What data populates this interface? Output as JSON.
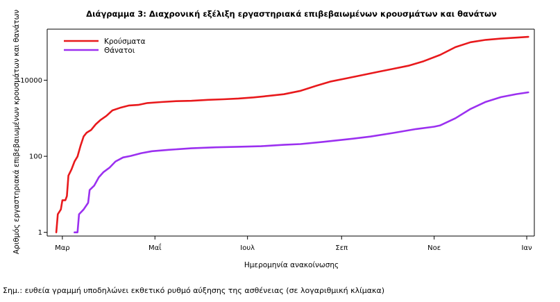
{
  "chart_data": {
    "type": "line",
    "title": "Διάγραμμα 3: Διαχρονική εξέλιξη εργαστηριακά επιβεβαιωμένων κρουσμάτων και θανάτων",
    "xlabel": "Ημερομηνία ανακοίνωσης",
    "ylabel": "Αριθμός εργαστηριακά επιβεβαιωμένων κρουσμάτων και θανάτων",
    "y_scale": "log",
    "ylim": [
      0.8,
      220000
    ],
    "xlim": [
      "2020-02-20",
      "2021-01-06"
    ],
    "x_ticks": [
      {
        "date": "2020-03-01",
        "label": "Μαρ"
      },
      {
        "date": "2020-05-01",
        "label": "Μαΐ"
      },
      {
        "date": "2020-07-01",
        "label": "Ιουλ"
      },
      {
        "date": "2020-09-01",
        "label": "Σεπ"
      },
      {
        "date": "2020-11-01",
        "label": "Νοε"
      },
      {
        "date": "2021-01-01",
        "label": "Ιαν"
      }
    ],
    "y_ticks": [
      {
        "value": 1,
        "label": "1"
      },
      {
        "value": 100,
        "label": "100"
      },
      {
        "value": 10000,
        "label": "10000"
      }
    ],
    "grid": false,
    "legend_position": "top-left",
    "series": [
      {
        "name": "Κρούσματα",
        "color": "#e8191c",
        "points": [
          [
            "2020-02-26",
            1
          ],
          [
            "2020-02-27",
            3
          ],
          [
            "2020-02-29",
            4
          ],
          [
            "2020-03-01",
            7
          ],
          [
            "2020-03-03",
            7
          ],
          [
            "2020-03-04",
            9
          ],
          [
            "2020-03-05",
            31
          ],
          [
            "2020-03-07",
            45
          ],
          [
            "2020-03-09",
            73
          ],
          [
            "2020-03-11",
            99
          ],
          [
            "2020-03-13",
            190
          ],
          [
            "2020-03-15",
            331
          ],
          [
            "2020-03-17",
            418
          ],
          [
            "2020-03-20",
            495
          ],
          [
            "2020-03-23",
            695
          ],
          [
            "2020-03-26",
            892
          ],
          [
            "2020-03-30",
            1156
          ],
          [
            "2020-04-03",
            1613
          ],
          [
            "2020-04-08",
            1884
          ],
          [
            "2020-04-14",
            2170
          ],
          [
            "2020-04-20",
            2245
          ],
          [
            "2020-04-26",
            2517
          ],
          [
            "2020-05-05",
            2663
          ],
          [
            "2020-05-15",
            2810
          ],
          [
            "2020-05-25",
            2878
          ],
          [
            "2020-06-05",
            3049
          ],
          [
            "2020-06-15",
            3148
          ],
          [
            "2020-06-25",
            3310
          ],
          [
            "2020-07-05",
            3530
          ],
          [
            "2020-07-15",
            3880
          ],
          [
            "2020-07-25",
            4280
          ],
          [
            "2020-08-05",
            5270
          ],
          [
            "2020-08-15",
            7080
          ],
          [
            "2020-08-25",
            9280
          ],
          [
            "2020-09-05",
            11380
          ],
          [
            "2020-09-15",
            13730
          ],
          [
            "2020-09-25",
            16590
          ],
          [
            "2020-10-05",
            20000
          ],
          [
            "2020-10-15",
            24000
          ],
          [
            "2020-10-25",
            31500
          ],
          [
            "2020-11-05",
            46500
          ],
          [
            "2020-11-15",
            74000
          ],
          [
            "2020-11-25",
            100000
          ],
          [
            "2020-12-05",
            115000
          ],
          [
            "2020-12-15",
            124000
          ],
          [
            "2020-12-25",
            132000
          ],
          [
            "2021-01-02",
            138000
          ]
        ]
      },
      {
        "name": "Θάνατοι",
        "color": "#9b30f0",
        "points": [
          [
            "2020-03-09",
            1
          ],
          [
            "2020-03-11",
            1
          ],
          [
            "2020-03-12",
            3
          ],
          [
            "2020-03-15",
            4
          ],
          [
            "2020-03-18",
            6
          ],
          [
            "2020-03-19",
            13
          ],
          [
            "2020-03-22",
            17
          ],
          [
            "2020-03-25",
            28
          ],
          [
            "2020-03-28",
            38
          ],
          [
            "2020-04-01",
            50
          ],
          [
            "2020-04-05",
            73
          ],
          [
            "2020-04-10",
            93
          ],
          [
            "2020-04-15",
            102
          ],
          [
            "2020-04-22",
            121
          ],
          [
            "2020-04-29",
            136
          ],
          [
            "2020-05-10",
            148
          ],
          [
            "2020-05-25",
            162
          ],
          [
            "2020-06-10",
            172
          ],
          [
            "2020-06-25",
            178
          ],
          [
            "2020-07-10",
            184
          ],
          [
            "2020-07-25",
            200
          ],
          [
            "2020-08-05",
            210
          ],
          [
            "2020-08-20",
            240
          ],
          [
            "2020-09-05",
            280
          ],
          [
            "2020-09-20",
            330
          ],
          [
            "2020-10-05",
            410
          ],
          [
            "2020-10-20",
            520
          ],
          [
            "2020-11-01",
            600
          ],
          [
            "2020-11-05",
            650
          ],
          [
            "2020-11-15",
            1000
          ],
          [
            "2020-11-25",
            1760
          ],
          [
            "2020-12-05",
            2700
          ],
          [
            "2020-12-15",
            3600
          ],
          [
            "2020-12-25",
            4300
          ],
          [
            "2021-01-02",
            4800
          ]
        ]
      }
    ],
    "note": "Σημ.: ευθεία γραμμή υποδηλώνει εκθετικό ρυθμό αύξησης της ασθένειας (σε λογαριθμική κλίμακα)"
  }
}
